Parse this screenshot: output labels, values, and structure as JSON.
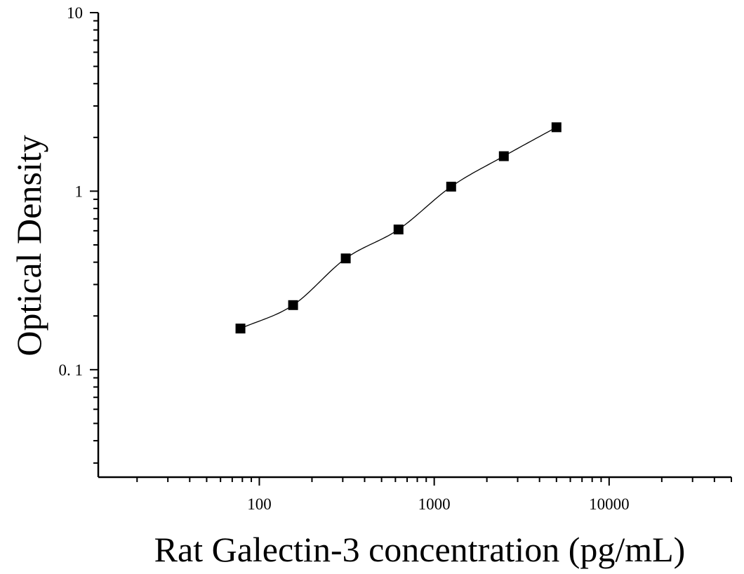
{
  "chart_data": {
    "type": "scatter",
    "title": "",
    "xlabel": "Rat Galectin-3 concentration (pg/mL)",
    "ylabel": "Optical Density",
    "x_scale": "log",
    "y_scale": "log",
    "xlim": [
      12,
      50000
    ],
    "ylim": [
      0.025,
      10
    ],
    "x_ticks": [
      100,
      1000,
      10000
    ],
    "x_tick_labels": [
      "100",
      "1000",
      "10000"
    ],
    "y_ticks": [
      0.1,
      1,
      10
    ],
    "y_tick_labels": [
      "0. 1",
      "1",
      "10"
    ],
    "grid": false,
    "legend": "none",
    "marker": "square",
    "marker_color": "#000000",
    "fit_line": true,
    "series": [
      {
        "x": [
          78,
          156,
          312,
          625,
          1250,
          2500,
          5000
        ],
        "y": [
          0.17,
          0.23,
          0.42,
          0.61,
          1.06,
          1.57,
          2.28
        ]
      }
    ]
  }
}
